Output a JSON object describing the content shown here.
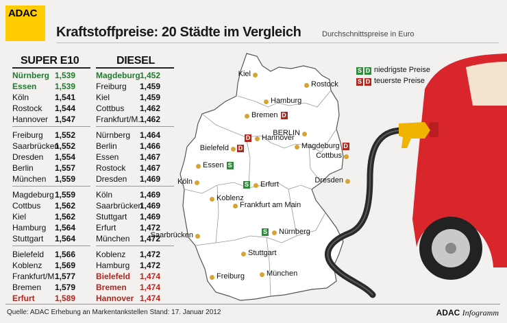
{
  "logo": "ADAC",
  "title": "Kraftstoffpreise: 20 Städte im Vergleich",
  "subtitle": "Durchschnittspreise in Euro",
  "super": {
    "heading": "SUPER E10",
    "groups": [
      [
        [
          "Nürnberg",
          "1,539",
          "g"
        ],
        [
          "Essen",
          "1,539",
          "g"
        ],
        [
          "Köln",
          "1,541",
          ""
        ],
        [
          "Rostock",
          "1,544",
          ""
        ],
        [
          "Hannover",
          "1,547",
          ""
        ]
      ],
      [
        [
          "Freiburg",
          "1,552",
          ""
        ],
        [
          "Saarbrücken",
          "1,552",
          ""
        ],
        [
          "Dresden",
          "1,554",
          ""
        ],
        [
          "Berlin",
          "1,557",
          ""
        ],
        [
          "München",
          "1,559",
          ""
        ]
      ],
      [
        [
          "Magdeburg",
          "1,559",
          ""
        ],
        [
          "Cottbus",
          "1,562",
          ""
        ],
        [
          "Kiel",
          "1,562",
          ""
        ],
        [
          "Hamburg",
          "1,564",
          ""
        ],
        [
          "Stuttgart",
          "1,564",
          ""
        ]
      ],
      [
        [
          "Bielefeld",
          "1,566",
          ""
        ],
        [
          "Koblenz",
          "1,569",
          ""
        ],
        [
          "Frankfurt/M.",
          "1,577",
          ""
        ],
        [
          "Bremen",
          "1,579",
          ""
        ],
        [
          "Erfurt",
          "1,589",
          "r"
        ]
      ]
    ]
  },
  "diesel": {
    "heading": "DIESEL",
    "groups": [
      [
        [
          "Magdeburg",
          "1,452",
          "g"
        ],
        [
          "Freiburg",
          "1,459",
          ""
        ],
        [
          "Kiel",
          "1,459",
          ""
        ],
        [
          "Cottbus",
          "1,462",
          ""
        ],
        [
          "Frankfurt/M.",
          "1,462",
          ""
        ]
      ],
      [
        [
          "Nürnberg",
          "1,464",
          ""
        ],
        [
          "Berlin",
          "1,466",
          ""
        ],
        [
          "Essen",
          "1,467",
          ""
        ],
        [
          "Rostock",
          "1,467",
          ""
        ],
        [
          "Dresden",
          "1,469",
          ""
        ]
      ],
      [
        [
          "Köln",
          "1,469",
          ""
        ],
        [
          "Saarbrücken",
          "1,469",
          ""
        ],
        [
          "Stuttgart",
          "1,469",
          ""
        ],
        [
          "Erfurt",
          "1,472",
          ""
        ],
        [
          "München",
          "1,472",
          ""
        ]
      ],
      [
        [
          "Koblenz",
          "1,472",
          ""
        ],
        [
          "Hamburg",
          "1,472",
          ""
        ],
        [
          "Bielefeld",
          "1,474",
          "r"
        ],
        [
          "Bremen",
          "1,474",
          "r"
        ],
        [
          "Hannover",
          "1,474",
          "r"
        ]
      ]
    ]
  },
  "legend": {
    "s": "S",
    "d": "D",
    "cheapest": "niedrigste Preise",
    "most_expensive": "teuerste Preise"
  },
  "map_cities": [
    {
      "name": "Kiel"
    },
    {
      "name": "Rostock"
    },
    {
      "name": "Hamburg"
    },
    {
      "name": "Bremen",
      "badge": "D"
    },
    {
      "name": "Hannover",
      "badge": "D"
    },
    {
      "name": "BERLIN"
    },
    {
      "name": "Bielefeld",
      "badge": "D"
    },
    {
      "name": "Magdeburg",
      "badge": "D"
    },
    {
      "name": "Essen",
      "badge": "S"
    },
    {
      "name": "Cottbus"
    },
    {
      "name": "Köln"
    },
    {
      "name": "Erfurt",
      "badge": "S"
    },
    {
      "name": "Dresden"
    },
    {
      "name": "Koblenz"
    },
    {
      "name": "Frankfurt am Main"
    },
    {
      "name": "Saarbrücken"
    },
    {
      "name": "Nürnberg",
      "badge": "S"
    },
    {
      "name": "Stuttgart"
    },
    {
      "name": "Freiburg"
    },
    {
      "name": "München"
    }
  ],
  "source": "Quelle: ADAC Erhebung an Markentankstellen    Stand: 17. Januar 2012",
  "brand_bold": "ADAC",
  "brand_italic": "Infogramm",
  "colors": {
    "green": "#1f7a2e",
    "red": "#b3261e",
    "adac_yellow": "#ffcc00",
    "car_red": "#d8262c"
  }
}
